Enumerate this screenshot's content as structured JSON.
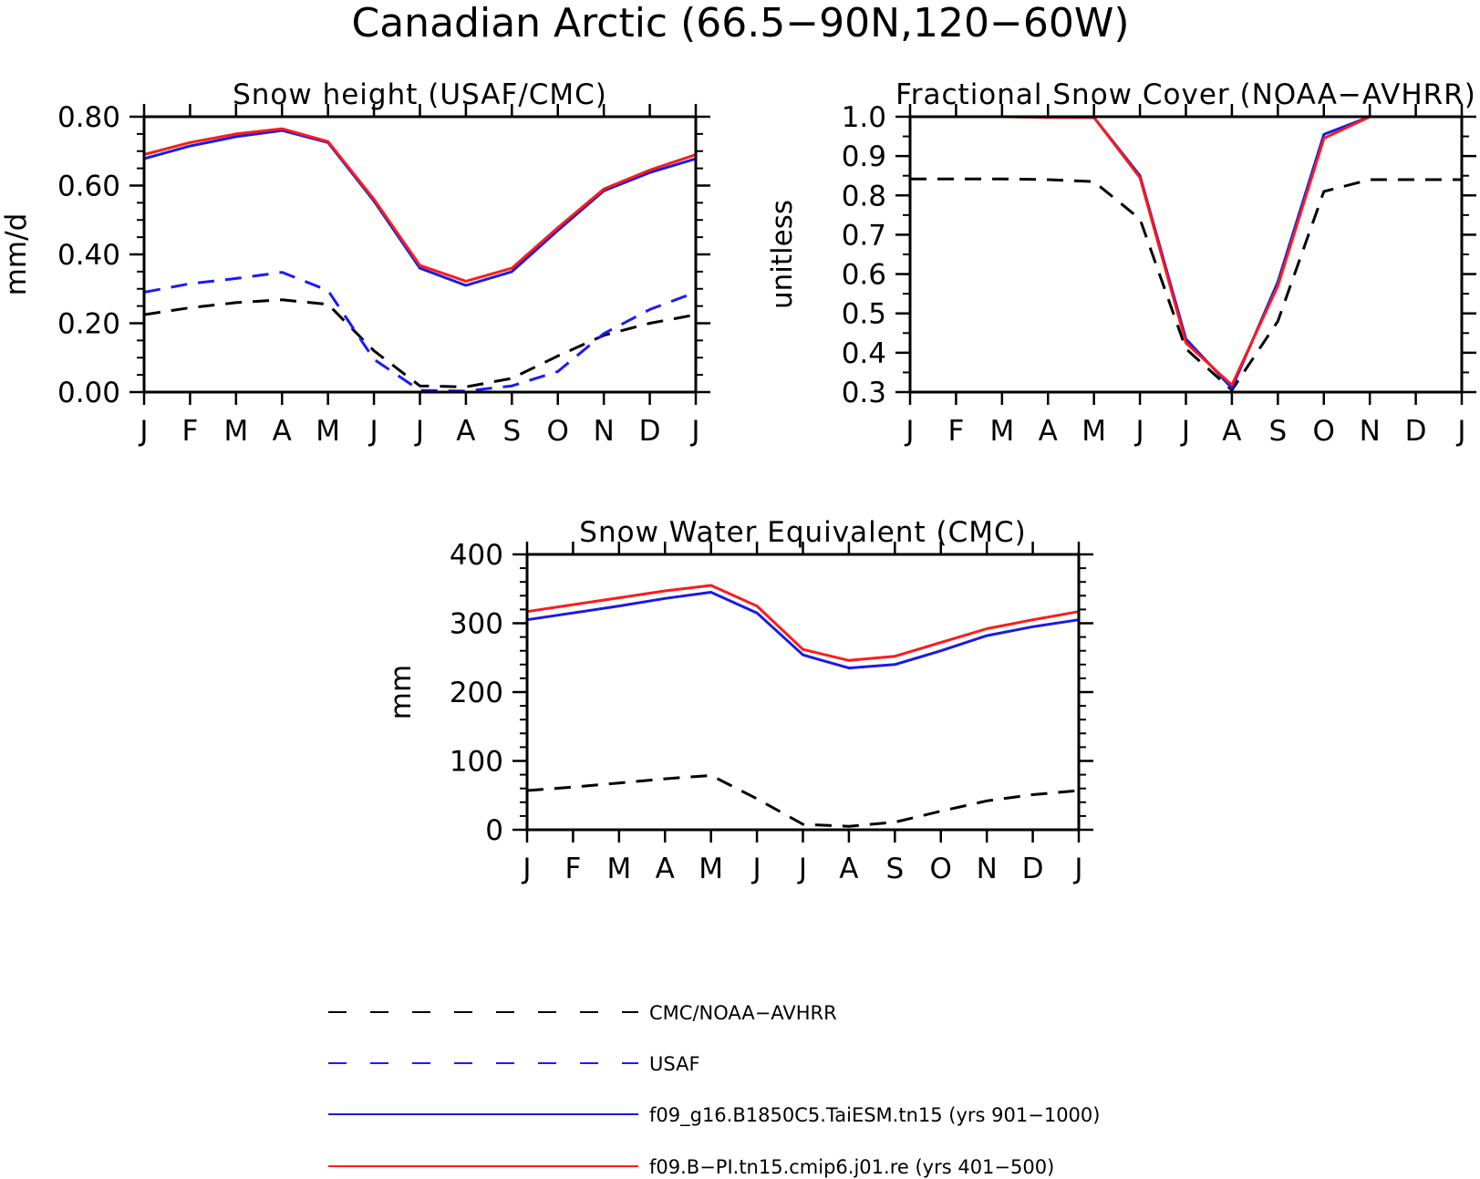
{
  "page_title": "Canadian Arctic (66.5−90N,120−60W)",
  "colors": {
    "obs": "#000000",
    "usaf": "#1a1aff",
    "taiesm": "#1a1ae6",
    "cesm": "#ff1a1a"
  },
  "legend": [
    {
      "label": "CMC/NOAA−AVHRR",
      "color": "#000000",
      "dash": true
    },
    {
      "label": "USAF",
      "color": "#1a1aff",
      "dash": true
    },
    {
      "label": "f09_g16.B1850C5.TaiESM.tn15 (yrs 901−1000)",
      "color": "#1a1ae6",
      "dash": false
    },
    {
      "label": "f09.B−PI.tn15.cmip6.j01.re (yrs 401−500)",
      "color": "#ff1a1a",
      "dash": false
    }
  ],
  "chart_data": [
    {
      "type": "line",
      "title": "Snow height (USAF/CMC)",
      "ylabel": "mm/d",
      "categories": [
        "J",
        "F",
        "M",
        "A",
        "M",
        "J",
        "J",
        "A",
        "S",
        "O",
        "N",
        "D",
        "J"
      ],
      "ylim": [
        0,
        0.8
      ],
      "yticks": [
        "0.00",
        "0.20",
        "0.40",
        "0.60",
        "0.80"
      ],
      "yminor": 0.05,
      "series": [
        {
          "name": "CMC/NOAA−AVHRR",
          "style": "obs",
          "values": [
            0.225,
            0.245,
            0.26,
            0.268,
            0.255,
            0.12,
            0.018,
            0.015,
            0.04,
            0.105,
            0.165,
            0.2,
            0.225
          ]
        },
        {
          "name": "USAF",
          "style": "usaf",
          "values": [
            0.29,
            0.315,
            0.33,
            0.348,
            0.295,
            0.095,
            0.005,
            0.003,
            0.018,
            0.06,
            0.17,
            0.24,
            0.29
          ]
        },
        {
          "name": "f09_g16.B1850C5.TaiESM.tn15 (yrs 901−1000)",
          "style": "taiesm",
          "values": [
            0.678,
            0.715,
            0.742,
            0.76,
            0.725,
            0.555,
            0.36,
            0.31,
            0.35,
            0.47,
            0.585,
            0.638,
            0.678
          ]
        },
        {
          "name": "f09.B−PI.tn15.cmip6.j01.re (yrs 401−500)",
          "style": "cesm",
          "values": [
            0.69,
            0.725,
            0.75,
            0.765,
            0.728,
            0.56,
            0.368,
            0.322,
            0.36,
            0.478,
            0.59,
            0.645,
            0.69
          ]
        }
      ]
    },
    {
      "type": "line",
      "title": "Fractional Snow Cover (NOAA−AVHRR)",
      "ylabel": "unitless",
      "categories": [
        "J",
        "F",
        "M",
        "A",
        "M",
        "J",
        "J",
        "A",
        "S",
        "O",
        "N",
        "D",
        "J"
      ],
      "ylim": [
        0.3,
        1.0
      ],
      "yticks": [
        "0.3",
        "0.4",
        "0.5",
        "0.6",
        "0.7",
        "0.8",
        "0.9",
        "1.0"
      ],
      "yminor": 0.05,
      "series": [
        {
          "name": "CMC/NOAA−AVHRR",
          "style": "obs",
          "values": [
            0.842,
            0.842,
            0.842,
            0.84,
            0.835,
            0.74,
            0.41,
            0.305,
            0.48,
            0.81,
            0.84,
            0.84,
            0.84
          ]
        },
        {
          "name": "f09_g16.B1850C5.TaiESM.tn15 (yrs 901−1000)",
          "style": "taiesm",
          "values": [
            1.0,
            1.0,
            1.0,
            1.0,
            0.998,
            0.85,
            0.435,
            0.31,
            0.58,
            0.955,
            1.0,
            1.0,
            1.0
          ]
        },
        {
          "name": "f09.B−PI.tn15.cmip6.j01.re (yrs 401−500)",
          "style": "cesm",
          "values": [
            1.0,
            1.0,
            1.0,
            0.998,
            0.998,
            0.845,
            0.425,
            0.318,
            0.57,
            0.945,
            1.0,
            1.0,
            1.0
          ]
        }
      ]
    },
    {
      "type": "line",
      "title": "Snow Water Equivalent (CMC)",
      "ylabel": "mm",
      "categories": [
        "J",
        "F",
        "M",
        "A",
        "M",
        "J",
        "J",
        "A",
        "S",
        "O",
        "N",
        "D",
        "J"
      ],
      "ylim": [
        0,
        400
      ],
      "yticks": [
        "0",
        "100",
        "200",
        "300",
        "400"
      ],
      "yminor": 20,
      "series": [
        {
          "name": "CMC/NOAA−AVHRR",
          "style": "obs",
          "values": [
            57,
            62,
            68,
            74,
            79,
            45,
            8,
            5,
            11,
            27,
            42,
            51,
            57
          ]
        },
        {
          "name": "f09_g16.B1850C5.TaiESM.tn15 (yrs 901−1000)",
          "style": "taiesm",
          "values": [
            305,
            315,
            325,
            336,
            345,
            315,
            254,
            235,
            240,
            260,
            282,
            295,
            305
          ]
        },
        {
          "name": "f09.B−PI.tn15.cmip6.j01.re (yrs 401−500)",
          "style": "cesm",
          "values": [
            317,
            327,
            337,
            347,
            355,
            325,
            262,
            246,
            252,
            272,
            292,
            305,
            317
          ]
        }
      ]
    }
  ]
}
